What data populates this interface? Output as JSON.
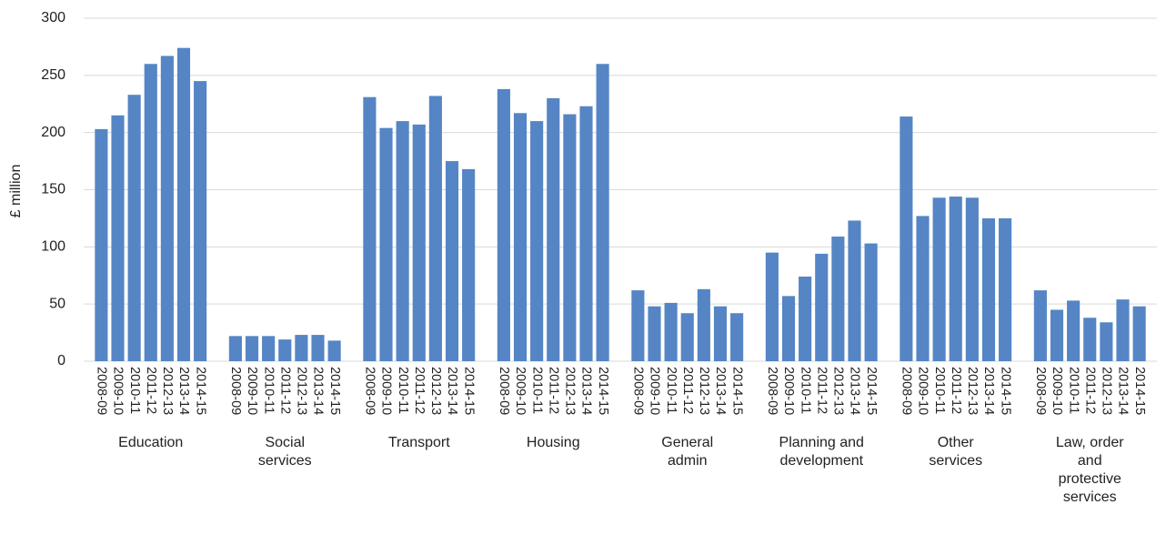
{
  "chart_data": {
    "type": "bar",
    "ylabel": "£ million",
    "categories": [
      "2008-09",
      "2009-10",
      "2010-11",
      "2011-12",
      "2012-13",
      "2013-14",
      "2014-15"
    ],
    "groups": [
      {
        "label": "Education",
        "values": [
          203,
          215,
          233,
          260,
          267,
          274,
          245
        ]
      },
      {
        "label": "Social services",
        "values": [
          22,
          22,
          22,
          19,
          23,
          23,
          18
        ]
      },
      {
        "label": "Transport",
        "values": [
          231,
          204,
          210,
          207,
          232,
          175,
          168
        ]
      },
      {
        "label": "Housing",
        "values": [
          238,
          217,
          210,
          230,
          216,
          223,
          260
        ]
      },
      {
        "label": "General admin",
        "values": [
          62,
          48,
          51,
          42,
          63,
          48,
          42
        ]
      },
      {
        "label": "Planning and development",
        "values": [
          95,
          57,
          74,
          94,
          109,
          123,
          103
        ]
      },
      {
        "label": "Other services",
        "values": [
          214,
          127,
          143,
          144,
          143,
          125,
          125
        ]
      },
      {
        "label": "Law, order and protective services",
        "values": [
          62,
          45,
          53,
          38,
          34,
          54,
          48
        ]
      }
    ],
    "color": "#5585c5",
    "ylim": [
      0,
      300
    ],
    "yticks": [
      0,
      50,
      100,
      150,
      200,
      250,
      300
    ],
    "grid": true
  }
}
